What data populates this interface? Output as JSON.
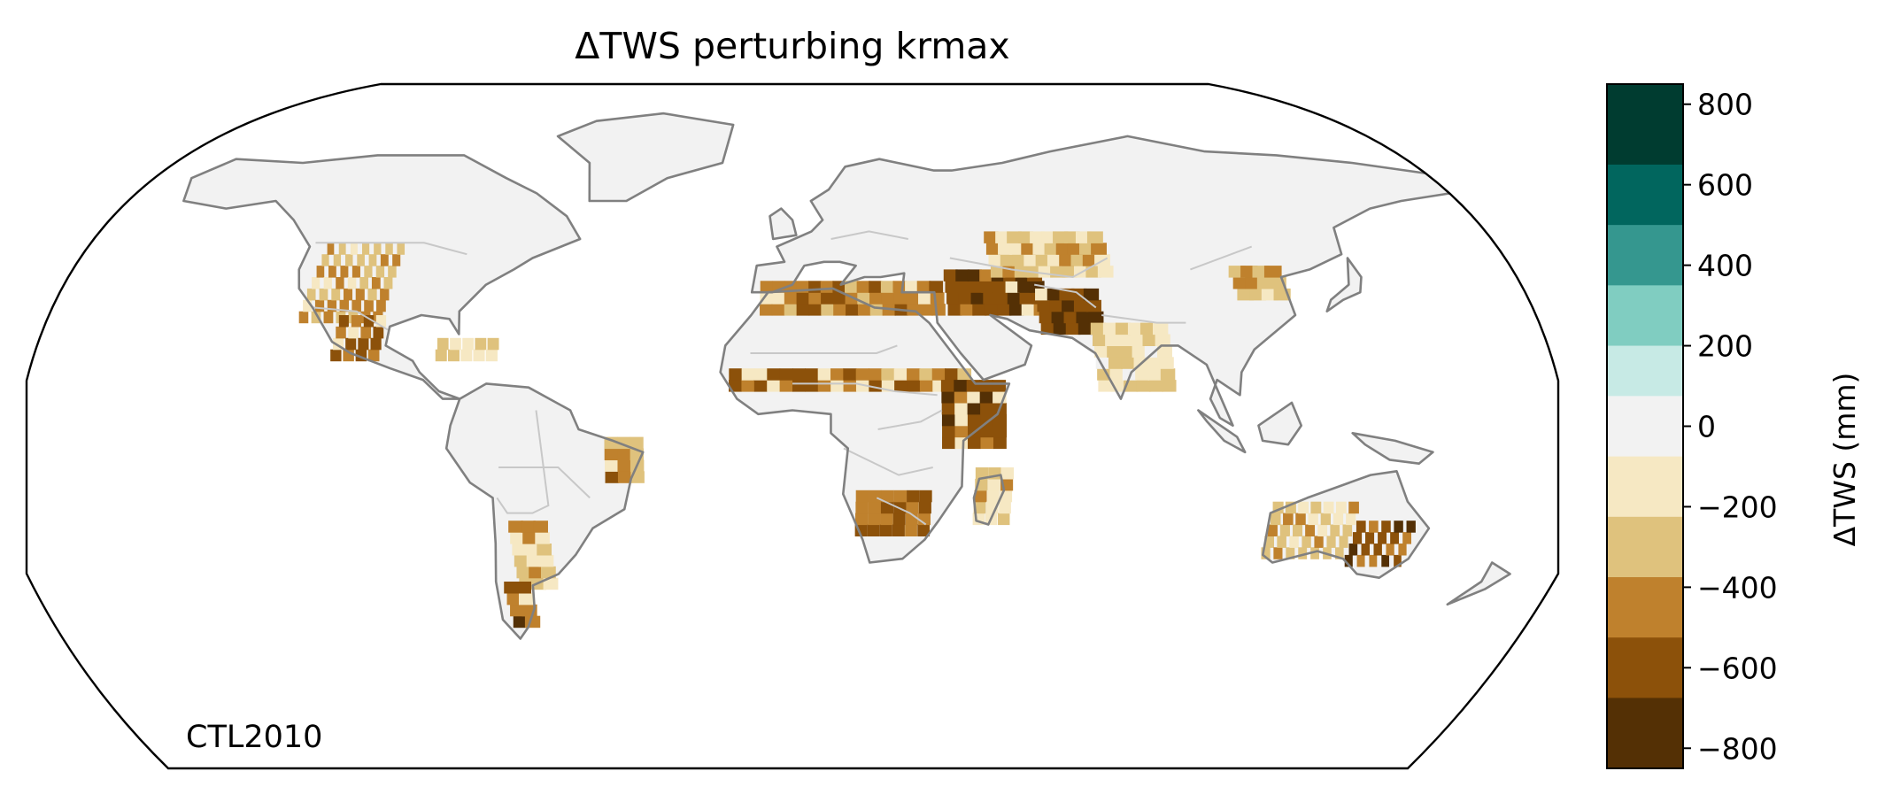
{
  "figure": {
    "title": "ΔTWS perturbing krmax",
    "panel_label": "CTL2010",
    "projection": "Robinson-like global map",
    "colors": {
      "land_background": "#f2f2f2",
      "coastline": "#808080",
      "borders": "#c8c8c8",
      "frame": "#000000"
    }
  },
  "colorbar": {
    "label": "ΔTWS (mm)",
    "ticks": [
      "800",
      "600",
      "400",
      "200",
      "0",
      "−200",
      "−400",
      "−600",
      "−800"
    ],
    "tick_values": [
      800,
      600,
      400,
      200,
      0,
      -200,
      -400,
      -600,
      -800
    ],
    "range": [
      -850,
      850
    ],
    "bins": [
      {
        "lo": 650,
        "hi": 850,
        "color": "#003c30"
      },
      {
        "lo": 500,
        "hi": 650,
        "color": "#01665e"
      },
      {
        "lo": 350,
        "hi": 500,
        "color": "#35978f"
      },
      {
        "lo": 200,
        "hi": 350,
        "color": "#80cdc1"
      },
      {
        "lo": 75,
        "hi": 200,
        "color": "#c7eae5"
      },
      {
        "lo": -75,
        "hi": 75,
        "color": "#f2f2f2"
      },
      {
        "lo": -225,
        "hi": -75,
        "color": "#f6e8c3"
      },
      {
        "lo": -375,
        "hi": -225,
        "color": "#dfc27d"
      },
      {
        "lo": -525,
        "hi": -375,
        "color": "#bf812d"
      },
      {
        "lo": -675,
        "hi": -525,
        "color": "#8c510a"
      },
      {
        "lo": -850,
        "hi": -675,
        "color": "#543005"
      }
    ]
  },
  "chart_data": {
    "type": "heatmap",
    "title": "ΔTWS perturbing krmax",
    "value_units": "mm",
    "vmin": -850,
    "vmax": 850,
    "regions": [
      {
        "name": "western United States",
        "lon": [
          -120,
          -100
        ],
        "lat": [
          28,
          48
        ],
        "value": -380
      },
      {
        "name": "Mexico",
        "lon": [
          -110,
          -98
        ],
        "lat": [
          18,
          30
        ],
        "value": -560
      },
      {
        "name": "Caribbean",
        "lon": [
          -85,
          -70
        ],
        "lat": [
          18,
          22
        ],
        "value": -300
      },
      {
        "name": "northeastern Brazil",
        "lon": [
          -44,
          -36
        ],
        "lat": [
          -14,
          -4
        ],
        "value": -420
      },
      {
        "name": "Argentina",
        "lon": [
          -68,
          -60
        ],
        "lat": [
          -42,
          -26
        ],
        "value": -320
      },
      {
        "name": "Patagonia",
        "lon": [
          -72,
          -66
        ],
        "lat": [
          -52,
          -40
        ],
        "value": -600
      },
      {
        "name": "Mediterranean / North Africa coast",
        "lon": [
          -8,
          35
        ],
        "lat": [
          30,
          38
        ],
        "value": -500
      },
      {
        "name": "Turkey / Iran",
        "lon": [
          38,
          60
        ],
        "lat": [
          30,
          40
        ],
        "value": -650
      },
      {
        "name": "Afghanistan / Pakistan",
        "lon": [
          60,
          75
        ],
        "lat": [
          25,
          36
        ],
        "value": -700
      },
      {
        "name": "Central Asia",
        "lon": [
          50,
          80
        ],
        "lat": [
          40,
          50
        ],
        "value": -300
      },
      {
        "name": "North China Plain",
        "lon": [
          110,
          120
        ],
        "lat": [
          34,
          42
        ],
        "value": -380
      },
      {
        "name": "India",
        "lon": [
          72,
          88
        ],
        "lat": [
          10,
          28
        ],
        "value": -220
      },
      {
        "name": "Sahel",
        "lon": [
          -15,
          40
        ],
        "lat": [
          10,
          15
        ],
        "value": -520
      },
      {
        "name": "East Africa / Horn",
        "lon": [
          35,
          48
        ],
        "lat": [
          -5,
          12
        ],
        "value": -620
      },
      {
        "name": "southern Africa",
        "lon": [
          15,
          32
        ],
        "lat": [
          -28,
          -18
        ],
        "value": -560
      },
      {
        "name": "Madagascar",
        "lon": [
          43,
          50
        ],
        "lat": [
          -25,
          -12
        ],
        "value": -300
      },
      {
        "name": "southeastern Australia",
        "lon": [
          135,
          150
        ],
        "lat": [
          -36,
          -24
        ],
        "value": -620
      },
      {
        "name": "western Australia",
        "lon": [
          114,
          135
        ],
        "lat": [
          -34,
          -20
        ],
        "value": -320
      }
    ]
  }
}
